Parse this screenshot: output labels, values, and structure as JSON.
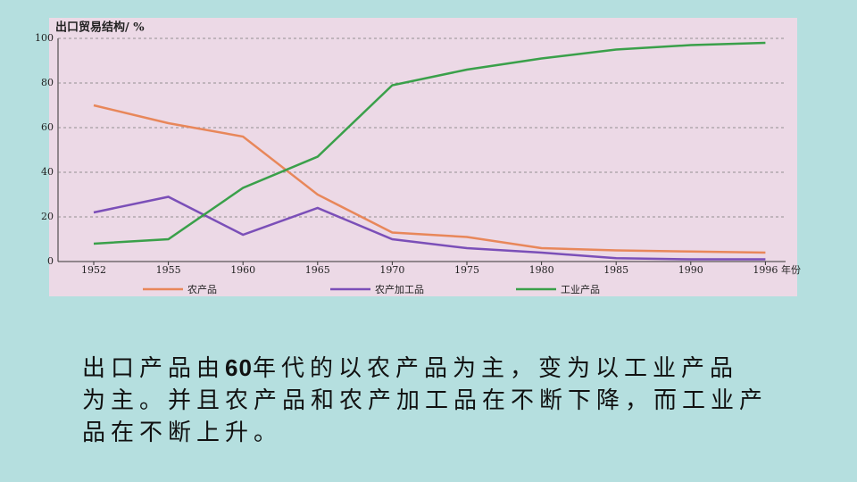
{
  "chart_data": {
    "type": "line",
    "y_label": "出口贸易结构/ %",
    "x_unit": "年份",
    "categories": [
      "1952",
      "1955",
      "1960",
      "1965",
      "1970",
      "1975",
      "1980",
      "1985",
      "1990",
      "1996"
    ],
    "series": [
      {
        "name": "农产品",
        "color": "#e8875a",
        "values": [
          70,
          62,
          56,
          30,
          13,
          11,
          6,
          5,
          4.5,
          4
        ]
      },
      {
        "name": "农产加工品",
        "color": "#7b4fb8",
        "values": [
          22,
          29,
          12,
          24,
          10,
          6,
          4,
          1.5,
          1,
          1
        ]
      },
      {
        "name": "工业产品",
        "color": "#3aa04a",
        "values": [
          8,
          10,
          33,
          47,
          79,
          86,
          91,
          95,
          97,
          98
        ]
      }
    ],
    "ylim": [
      0,
      100
    ],
    "yticks": [
      0,
      20,
      40,
      60,
      80,
      100
    ],
    "grid": true
  },
  "caption": [
    "出口产品由",
    "60",
    "年代的以农产品为主，变为以工业产品",
    "为主。并且农产品和农产加工品在不断下降，而工业产",
    "品在不断上升。"
  ]
}
